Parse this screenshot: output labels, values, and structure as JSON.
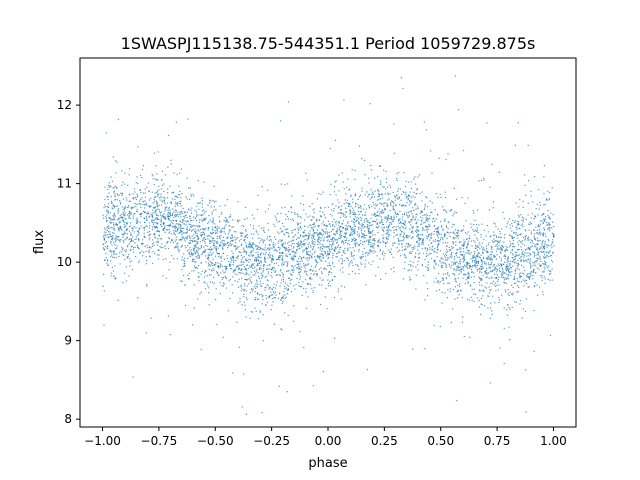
{
  "chart_data": {
    "type": "scatter",
    "title": "1SWASPJ115138.75-544351.1 Period 1059729.875s",
    "xlabel": "phase",
    "ylabel": "flux",
    "xlim": [
      -1.1,
      1.1
    ],
    "ylim": [
      7.9,
      12.6
    ],
    "x_ticks": [
      -1.0,
      -0.75,
      -0.5,
      -0.25,
      0.0,
      0.25,
      0.5,
      0.75,
      1.0
    ],
    "x_tick_labels": [
      "−1.00",
      "−0.75",
      "−0.50",
      "−0.25",
      "0.00",
      "0.25",
      "0.50",
      "0.75",
      "1.00"
    ],
    "y_ticks": [
      8,
      9,
      10,
      11,
      12
    ],
    "y_tick_labels": [
      "8",
      "9",
      "10",
      "11",
      "12"
    ],
    "grid": false,
    "legend": "none",
    "point_color": "#1f77b4",
    "series": [
      {
        "phase_range": [
          -1.0,
          1.0
        ],
        "trend": {
          "phase": [
            -1.0,
            -0.75,
            -0.5,
            -0.3,
            -0.25,
            -0.1,
            0.0,
            0.25,
            0.3,
            0.5,
            0.7,
            0.75,
            0.9,
            1.0
          ],
          "flux": [
            10.4,
            10.6,
            10.2,
            9.95,
            10.0,
            10.15,
            10.3,
            10.55,
            10.6,
            10.2,
            9.95,
            10.0,
            10.15,
            10.3
          ]
        },
        "scatter_sd": 0.28
      }
    ]
  }
}
